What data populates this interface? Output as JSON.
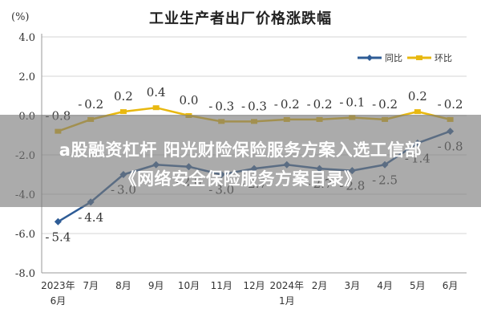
{
  "chart_data": {
    "type": "line",
    "title": "工业生产者出厂价格涨跌幅",
    "unit_label": "(%)",
    "categories": [
      "2023年\n6月",
      "7月",
      "8月",
      "9月",
      "10月",
      "11月",
      "12月",
      "2024年\n1月",
      "2月",
      "3月",
      "4月",
      "5月",
      "6月"
    ],
    "yticks": [
      "4.0",
      "2.0",
      "0.0",
      "-2.0",
      "-4.0",
      "-6.0",
      "-8.0"
    ],
    "ylim": [
      -8,
      4
    ],
    "grid": true,
    "legend_position": "top-right",
    "series": [
      {
        "name": "同比",
        "color": "#2e5c96",
        "values": [
          -5.4,
          -4.4,
          -3.0,
          -2.5,
          -2.6,
          -3.0,
          -2.7,
          -2.5,
          -2.7,
          -2.8,
          -2.5,
          -1.4,
          -0.8
        ],
        "labels": [
          "-5.4",
          "-4.4",
          "-3.0",
          "",
          "-2.6",
          "-3.0",
          "-2.7",
          "",
          "-2.7",
          "-2.8",
          "-2.5",
          "-1.4",
          "-0.8"
        ]
      },
      {
        "name": "环比",
        "color": "#e8b810",
        "values": [
          -0.8,
          -0.2,
          0.2,
          0.4,
          0.0,
          -0.3,
          -0.3,
          -0.2,
          -0.2,
          -0.1,
          -0.2,
          0.2,
          -0.2
        ],
        "labels": [
          "-0.8",
          "-0.2",
          "0.2",
          "0.4",
          "0.0",
          "-0.3",
          "-0.3",
          "-0.2",
          "-0.2",
          "-0.1",
          "-0.2",
          "0.2",
          "-0.2"
        ]
      }
    ]
  },
  "overlay": {
    "line1": "a股融资杠杆 阳光财险保险服务方案入选工信部",
    "line2": "《网络安全保险服务方案目录》"
  }
}
